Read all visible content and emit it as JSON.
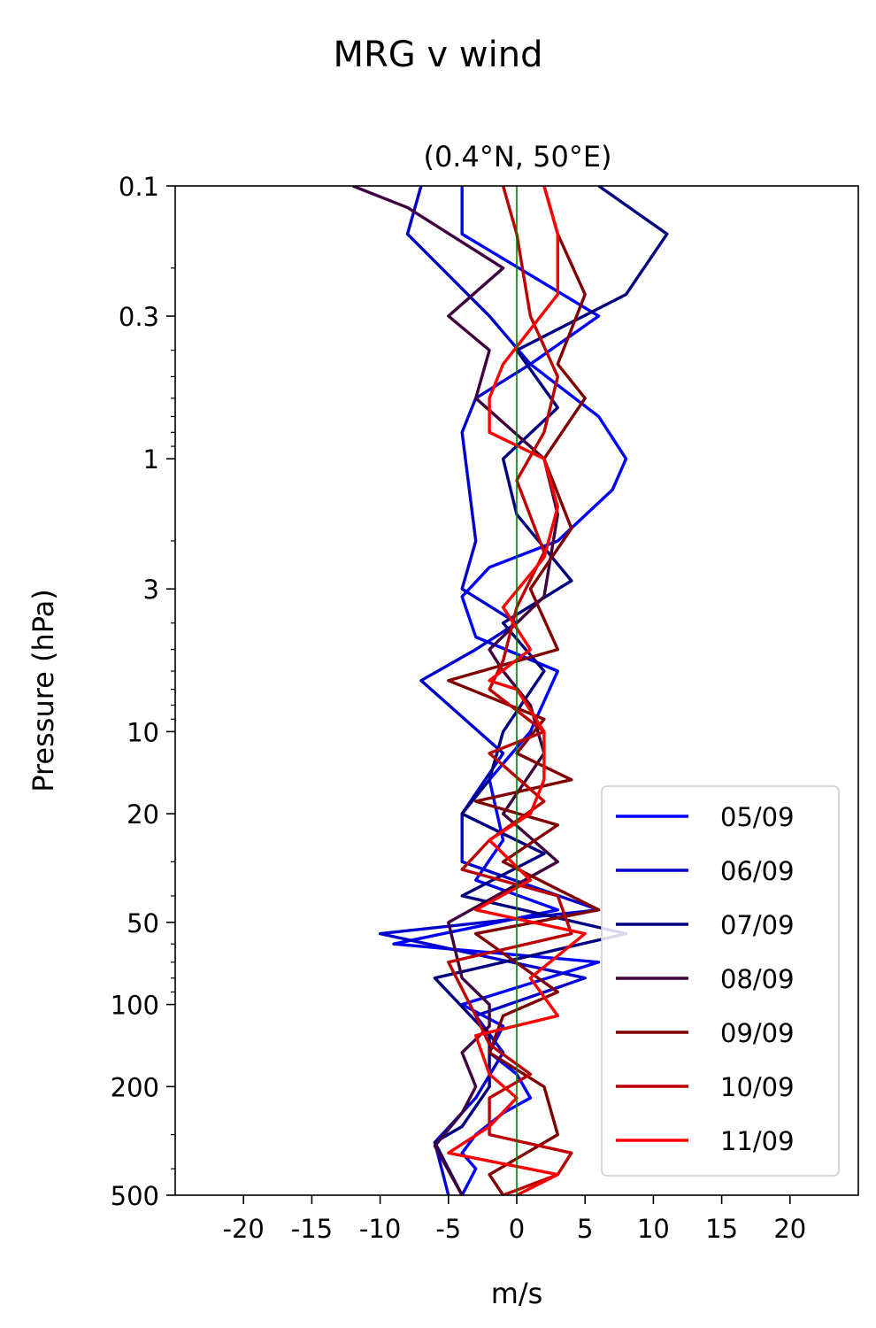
{
  "chart_data": {
    "type": "line",
    "suptitle": "MRG v wind",
    "title": "(0.4°N, 50°E)",
    "xlabel": "m/s",
    "ylabel": "Pressure (hPa)",
    "xlim": [
      -25,
      25
    ],
    "ylim": [
      500,
      0.1
    ],
    "yscale": "log",
    "xticks": [
      -20,
      -15,
      -10,
      -5,
      0,
      5,
      10,
      15,
      20
    ],
    "xtick_labels": [
      "-20",
      "-15",
      "-10",
      "-5",
      "0",
      "5",
      "10",
      "15",
      "20"
    ],
    "yticks": [
      0.1,
      0.3,
      1,
      3,
      10,
      20,
      50,
      100,
      200,
      500
    ],
    "ytick_labels": [
      "0.1",
      "0.3",
      "1",
      "3",
      "10",
      "20",
      "50",
      "100",
      "200",
      "500"
    ],
    "zero_line_color": "#008000",
    "legend_position": "lower-right",
    "series": [
      {
        "name": "05/09",
        "color": "#0000ff",
        "points": [
          [
            -4,
            500
          ],
          [
            -3,
            400
          ],
          [
            -4,
            350
          ],
          [
            -3,
            300
          ],
          [
            -1,
            250
          ],
          [
            1,
            220
          ],
          [
            0,
            180
          ],
          [
            -2,
            150
          ],
          [
            -1,
            120
          ],
          [
            -4,
            100
          ],
          [
            6,
            70
          ],
          [
            -9,
            60
          ],
          [
            3,
            45
          ],
          [
            -3,
            35
          ],
          [
            -1,
            25
          ],
          [
            -2,
            15
          ],
          [
            1,
            10
          ],
          [
            3,
            6
          ],
          [
            -3,
            4.5
          ],
          [
            -4,
            3.2
          ],
          [
            -2,
            2.5
          ],
          [
            3,
            2
          ],
          [
            7,
            1.3
          ],
          [
            8,
            1
          ],
          [
            6,
            0.7
          ],
          [
            1,
            0.45
          ],
          [
            6,
            0.3
          ],
          [
            -4,
            0.15
          ],
          [
            -4,
            0.1
          ]
        ]
      },
      {
        "name": "06/09",
        "color": "#0000cc",
        "points": [
          [
            -5,
            500
          ],
          [
            -6,
            320
          ],
          [
            -3,
            220
          ],
          [
            -1,
            150
          ],
          [
            -3,
            110
          ],
          [
            5,
            80
          ],
          [
            -10,
            55
          ],
          [
            6,
            45
          ],
          [
            -4,
            30
          ],
          [
            -4,
            20
          ],
          [
            -1,
            12
          ],
          [
            -7,
            6.5
          ],
          [
            -3,
            5
          ],
          [
            0,
            4
          ],
          [
            -4,
            3
          ],
          [
            -3,
            2
          ],
          [
            -4,
            0.8
          ],
          [
            -3,
            0.6
          ],
          [
            1,
            0.45
          ],
          [
            -2,
            0.3
          ],
          [
            -8,
            0.15
          ],
          [
            -7,
            0.1
          ]
        ]
      },
      {
        "name": "07/09",
        "color": "#000080",
        "points": [
          [
            -4,
            500
          ],
          [
            -6,
            320
          ],
          [
            -4,
            280
          ],
          [
            -2,
            200
          ],
          [
            -2,
            130
          ],
          [
            -6,
            80
          ],
          [
            8,
            55
          ],
          [
            -4,
            40
          ],
          [
            2,
            28
          ],
          [
            -4,
            20
          ],
          [
            -2,
            15
          ],
          [
            -1,
            10
          ],
          [
            2,
            6
          ],
          [
            -1,
            4
          ],
          [
            4,
            2.8
          ],
          [
            0,
            1.6
          ],
          [
            -1,
            1
          ],
          [
            3,
            0.65
          ],
          [
            0,
            0.4
          ],
          [
            8,
            0.25
          ],
          [
            11,
            0.15
          ],
          [
            6,
            0.1
          ]
        ]
      },
      {
        "name": "08/09",
        "color": "#400040",
        "points": [
          [
            -4,
            500
          ],
          [
            -6,
            330
          ],
          [
            -4,
            250
          ],
          [
            -3,
            200
          ],
          [
            -4,
            150
          ],
          [
            -2,
            120
          ],
          [
            -2,
            100
          ],
          [
            -4,
            80
          ],
          [
            -5,
            50
          ],
          [
            3,
            30
          ],
          [
            -1,
            20
          ],
          [
            2,
            12
          ],
          [
            1,
            8
          ],
          [
            -1,
            6
          ],
          [
            -2,
            5
          ],
          [
            2,
            3.2
          ],
          [
            3,
            1.6
          ],
          [
            2,
            1
          ],
          [
            -3,
            0.6
          ],
          [
            -2,
            0.4
          ],
          [
            -5,
            0.3
          ],
          [
            -1,
            0.2
          ],
          [
            -8,
            0.12
          ],
          [
            -12,
            0.1
          ]
        ]
      },
      {
        "name": "09/09",
        "color": "#800000",
        "points": [
          [
            -1,
            500
          ],
          [
            -2,
            420
          ],
          [
            3,
            300
          ],
          [
            2,
            200
          ],
          [
            -2,
            150
          ],
          [
            -1,
            110
          ],
          [
            3,
            90
          ],
          [
            -3,
            55
          ],
          [
            6,
            45
          ],
          [
            -1,
            30
          ],
          [
            3,
            22
          ],
          [
            -3,
            18
          ],
          [
            4,
            15
          ],
          [
            0,
            12
          ],
          [
            2,
            9
          ],
          [
            -5,
            6.5
          ],
          [
            3,
            5
          ],
          [
            1,
            3
          ],
          [
            4,
            1.8
          ],
          [
            2,
            1
          ],
          [
            5,
            0.6
          ],
          [
            3,
            0.45
          ],
          [
            5,
            0.25
          ],
          [
            3,
            0.15
          ],
          [
            2,
            0.1
          ]
        ]
      },
      {
        "name": "10/09",
        "color": "#bb0000",
        "points": [
          [
            -1,
            500
          ],
          [
            3,
            420
          ],
          [
            4,
            350
          ],
          [
            -2,
            300
          ],
          [
            -2,
            220
          ],
          [
            1,
            180
          ],
          [
            -2,
            140
          ],
          [
            -3,
            110
          ],
          [
            -5,
            70
          ],
          [
            4,
            55
          ],
          [
            3,
            40
          ],
          [
            -4,
            32
          ],
          [
            -2,
            25
          ],
          [
            2,
            18
          ],
          [
            -2,
            12
          ],
          [
            2,
            10
          ],
          [
            -2,
            7
          ],
          [
            -1,
            5.5
          ],
          [
            0,
            3.5
          ],
          [
            2,
            2.2
          ],
          [
            0,
            1.2
          ],
          [
            2,
            0.8
          ],
          [
            3,
            0.5
          ],
          [
            1,
            0.3
          ],
          [
            0,
            0.15
          ],
          [
            -1,
            0.1
          ]
        ]
      },
      {
        "name": "11/09",
        "color": "#ff0000",
        "points": [
          [
            0,
            500
          ],
          [
            3,
            420
          ],
          [
            -5,
            350
          ],
          [
            -2,
            280
          ],
          [
            0,
            220
          ],
          [
            -2,
            180
          ],
          [
            -3,
            130
          ],
          [
            3,
            110
          ],
          [
            1,
            80
          ],
          [
            5,
            55
          ],
          [
            -3,
            45
          ],
          [
            1,
            35
          ],
          [
            -2,
            25
          ],
          [
            1,
            20
          ],
          [
            2,
            15
          ],
          [
            2,
            10
          ],
          [
            0,
            7
          ],
          [
            -2,
            6.5
          ],
          [
            1,
            5
          ],
          [
            -1,
            3.5
          ],
          [
            2,
            2.3
          ],
          [
            3,
            1.5
          ],
          [
            2,
            1
          ],
          [
            -2,
            0.8
          ],
          [
            -2,
            0.6
          ],
          [
            -1,
            0.45
          ],
          [
            3,
            0.25
          ],
          [
            3,
            0.15
          ],
          [
            2,
            0.1
          ]
        ]
      }
    ]
  }
}
